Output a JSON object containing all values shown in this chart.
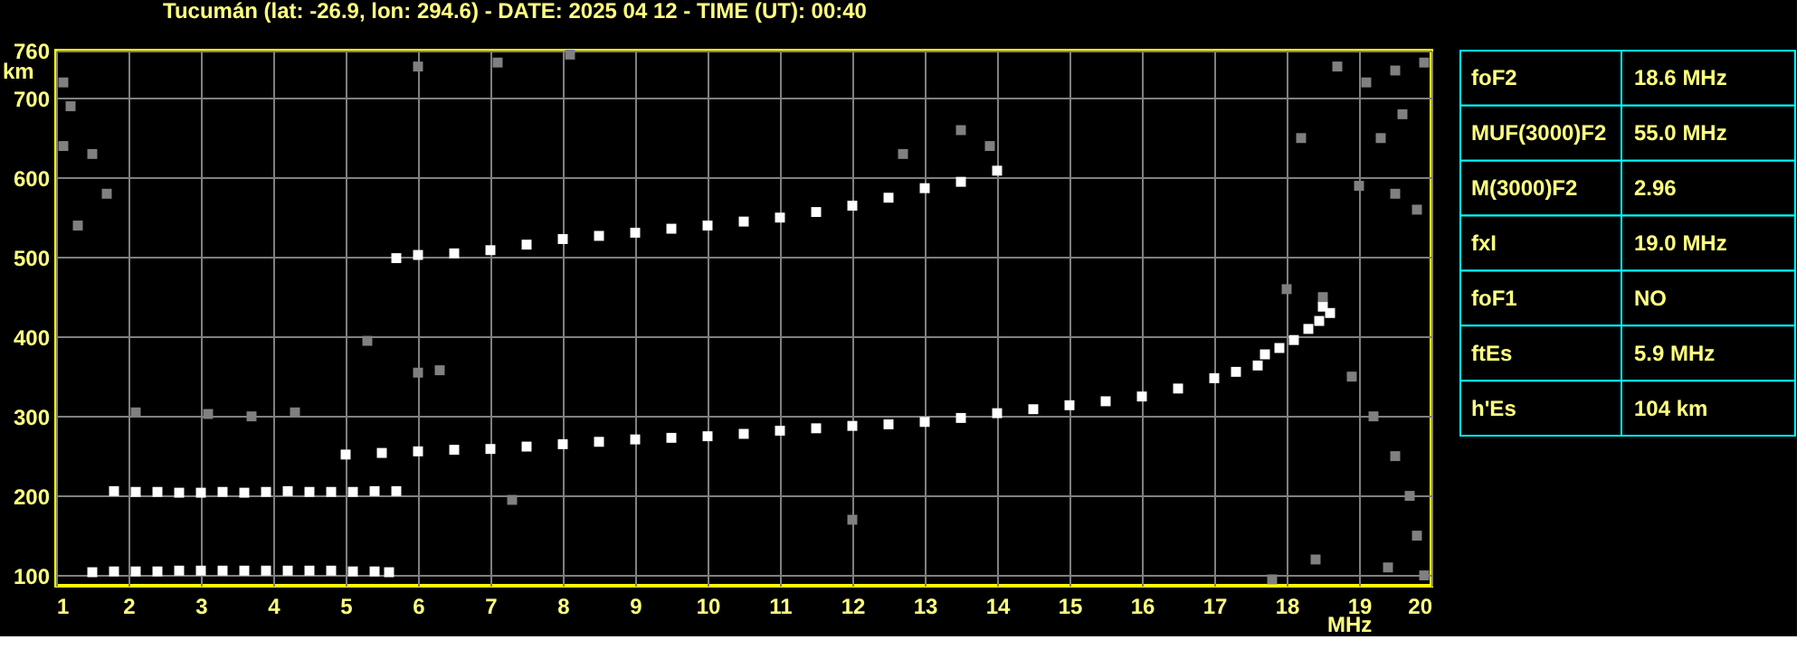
{
  "chart_data": [
    {
      "type": "scatter",
      "title": "Tucumán (lat: -26.9, lon: 294.6) - DATE: 2025 04 12 - TIME (UT): 00:40",
      "xlabel": "MHz",
      "ylabel": "km",
      "xlim": [
        1,
        20
      ],
      "xticks": [
        1,
        2,
        3,
        4,
        5,
        6,
        7,
        8,
        9,
        10,
        11,
        12,
        13,
        14,
        15,
        16,
        17,
        18,
        19,
        20
      ],
      "ylim": [
        87,
        760
      ],
      "yticks": [
        100,
        200,
        300,
        400,
        500,
        600,
        700,
        760
      ],
      "grid": true,
      "marker": "square",
      "series": [
        {
          "color": "#ffffff",
          "x": [
            1.5,
            1.8,
            2.1,
            2.4,
            2.7,
            3.0,
            3.3,
            3.6,
            3.9,
            4.2,
            4.5,
            4.8,
            5.1,
            5.4,
            5.6
          ],
          "values": [
            104,
            105,
            105,
            105,
            106,
            106,
            106,
            106,
            106,
            106,
            106,
            106,
            105,
            105,
            104
          ]
        },
        {
          "color": "#ffffff",
          "x": [
            1.8,
            2.1,
            2.4,
            2.7,
            3.0,
            3.3,
            3.6,
            3.9,
            4.2,
            4.5,
            4.8,
            5.1,
            5.4,
            5.7
          ],
          "values": [
            206,
            205,
            205,
            204,
            204,
            205,
            204,
            205,
            206,
            205,
            205,
            205,
            206,
            206
          ]
        },
        {
          "color": "#ffffff",
          "x": [
            5.0,
            5.5,
            6.0,
            6.5,
            7.0,
            7.5,
            8.0,
            8.5,
            9.0,
            9.5,
            10.0,
            10.5,
            11.0,
            11.5,
            12.0,
            12.5,
            13.0,
            13.5,
            14.0,
            14.5,
            15.0,
            15.5,
            16.0,
            16.5,
            17.0,
            17.3,
            17.6,
            17.9,
            18.1,
            18.3,
            18.45,
            18.6
          ],
          "values": [
            252,
            254,
            256,
            258,
            259,
            262,
            265,
            268,
            271,
            273,
            275,
            278,
            282,
            285,
            288,
            290,
            293,
            298,
            304,
            309,
            314,
            319,
            325,
            335,
            348,
            356,
            364,
            386,
            396,
            410,
            420,
            430
          ]
        },
        {
          "color": "#ffffff",
          "x": [
            17.7,
            18.5
          ],
          "values": [
            378,
            438
          ]
        },
        {
          "color": "#ffffff",
          "x": [
            5.7,
            6.0,
            6.5,
            7.0,
            7.5,
            8.0,
            8.5,
            9.0,
            9.5,
            10.0,
            10.5,
            11.0,
            11.5,
            12.0,
            12.5,
            13.0,
            13.5,
            14.0
          ],
          "values": [
            499,
            503,
            505,
            509,
            516,
            523,
            527,
            531,
            536,
            540,
            545,
            550,
            557,
            565,
            575,
            587,
            595,
            609
          ]
        },
        {
          "color": "#808080",
          "x": [
            1.1,
            1.2,
            1.5,
            1.7,
            1.1,
            1.3,
            5.3,
            6.0,
            6.3,
            2.1,
            3.1,
            3.7,
            4.3,
            12.0,
            7.3,
            18.7,
            19.1,
            19.5,
            19.9,
            18.2,
            19.0,
            19.5,
            19.8,
            19.3,
            19.6,
            18.0,
            18.5,
            18.9,
            19.2,
            19.5,
            19.7,
            19.8,
            19.4,
            19.9,
            18.4,
            17.8,
            13.9,
            13.5,
            12.7,
            6.0,
            7.1,
            8.1
          ],
          "values": [
            720,
            690,
            630,
            580,
            640,
            540,
            395,
            355,
            358,
            305,
            303,
            300,
            305,
            170,
            195,
            740,
            720,
            735,
            745,
            650,
            590,
            580,
            560,
            650,
            680,
            460,
            450,
            350,
            300,
            250,
            200,
            150,
            110,
            100,
            120,
            95,
            640,
            660,
            630,
            740,
            745,
            755
          ]
        }
      ]
    },
    {
      "type": "other",
      "categories": [
        "foF2",
        "MUF(3000)F2",
        "M(3000)F2",
        "fxI",
        "foF1",
        "ftEs",
        "h'Es"
      ],
      "value_labels": [
        "18.6 MHz",
        "55.0 MHz",
        "2.96",
        "19.0 MHz",
        "NO",
        "5.9 MHz",
        "104 km"
      ]
    }
  ]
}
